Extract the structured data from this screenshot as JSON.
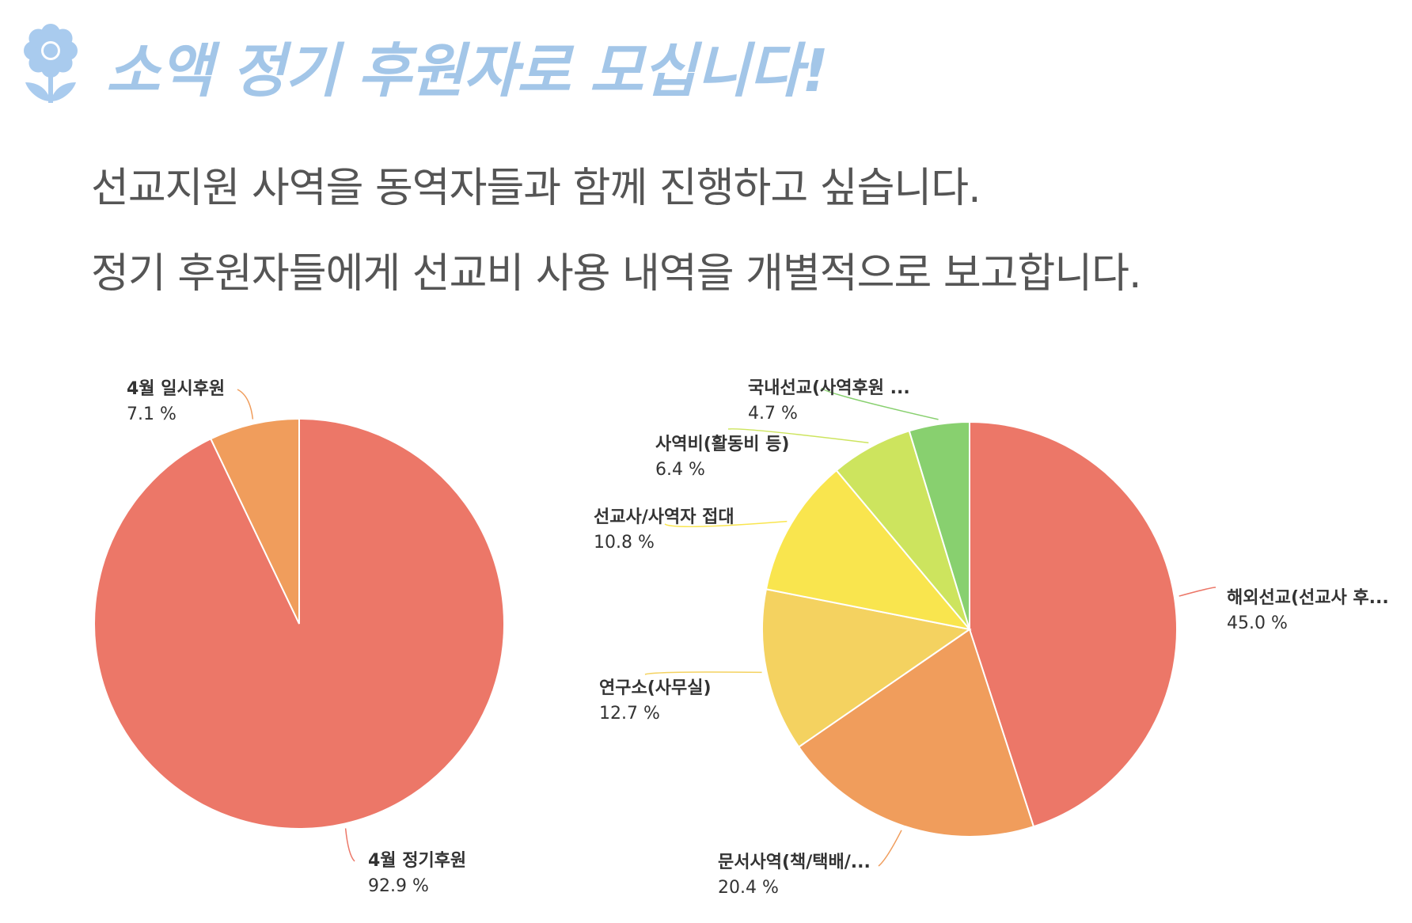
{
  "header": {
    "title": "소액 정기 후원자로 모십니다!",
    "subtitle_line1": "선교지원 사역을 동역자들과 함께 진행하고 싶습니다.",
    "subtitle_line2": "정기 후원자들에게 선교비 사용 내역을 개별적으로 보고합니다."
  },
  "colors": {
    "title": "#a3c6e8",
    "flower": "#a9cbee",
    "subtitle": "#555555"
  },
  "chart_data": [
    {
      "type": "pie",
      "slices": [
        {
          "label": "4월 정기후원",
          "value": 92.9,
          "display": "92.9 %",
          "color": "#ec7768"
        },
        {
          "label": "4월 일시후원",
          "value": 7.1,
          "display": "7.1 %",
          "color": "#f09d5c"
        }
      ]
    },
    {
      "type": "pie",
      "slices": [
        {
          "label": "해외선교(선교사 후...",
          "value": 45.0,
          "display": "45.0 %",
          "color": "#ec7768"
        },
        {
          "label": "문서사역(책/택배/...",
          "value": 20.4,
          "display": "20.4 %",
          "color": "#f09d5c"
        },
        {
          "label": "연구소(사무실)",
          "value": 12.7,
          "display": "12.7 %",
          "color": "#f4d260"
        },
        {
          "label": "선교사/사역자 접대",
          "value": 10.8,
          "display": "10.8 %",
          "color": "#f9e54e"
        },
        {
          "label": "사역비(활동비 등)",
          "value": 6.4,
          "display": "6.4 %",
          "color": "#cde45e"
        },
        {
          "label": "국내선교(사역후원 ...",
          "value": 4.7,
          "display": "4.7 %",
          "color": "#88d06f"
        }
      ]
    }
  ]
}
